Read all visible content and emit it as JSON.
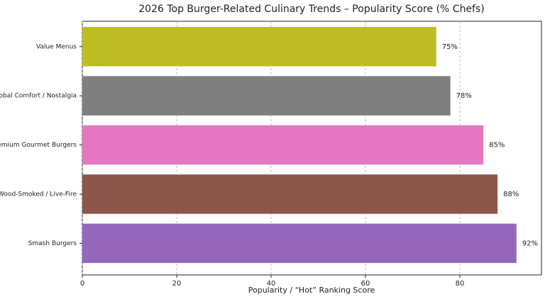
{
  "chart_data": {
    "type": "barh",
    "title": "2026 Top Burger-Related Culinary Trends – Popularity Score (% Chefs)",
    "x_label": "Popularity / “Hot” Ranking Score",
    "categories": [
      "Value Menus",
      "Global Comfort / Nostalgia",
      "Premium Gourmet Burgers",
      "Wood-Smoked / Live-Fire",
      "Smash Burgers"
    ],
    "values": [
      75,
      78,
      85,
      88,
      92
    ],
    "value_labels": [
      "75%",
      "78%",
      "85%",
      "88%",
      "92%"
    ],
    "colors": [
      "#bcbd22",
      "#7f7f7f",
      "#e377c2",
      "#8c564b",
      "#9467bd"
    ],
    "xlim": [
      0,
      97.3
    ],
    "xticks": [
      0,
      20,
      40,
      60,
      80
    ],
    "grid": true
  }
}
